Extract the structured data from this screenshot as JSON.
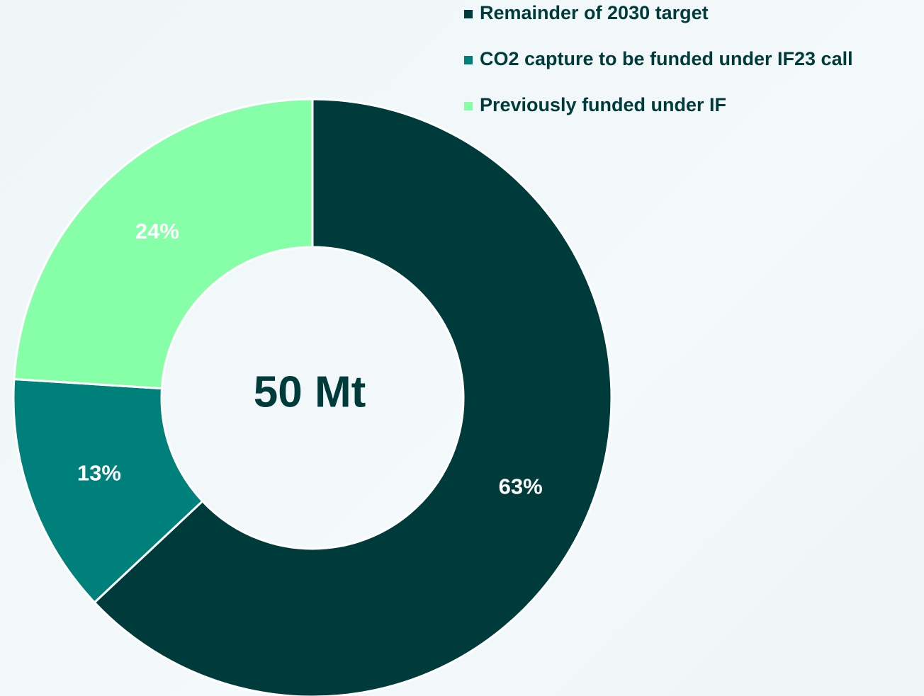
{
  "chart_data": {
    "type": "donut",
    "center_label": "50 Mt",
    "categories": [
      "Remainder of 2030 target",
      "CO2 capture to be funded under IF23 call",
      "Previously funded under IF"
    ],
    "values": [
      63,
      13,
      24
    ],
    "value_labels": [
      "63%",
      "13%",
      "24%"
    ],
    "colors": [
      "#003b3b",
      "#00807a",
      "#87ffa8"
    ],
    "legend": "top-right"
  }
}
